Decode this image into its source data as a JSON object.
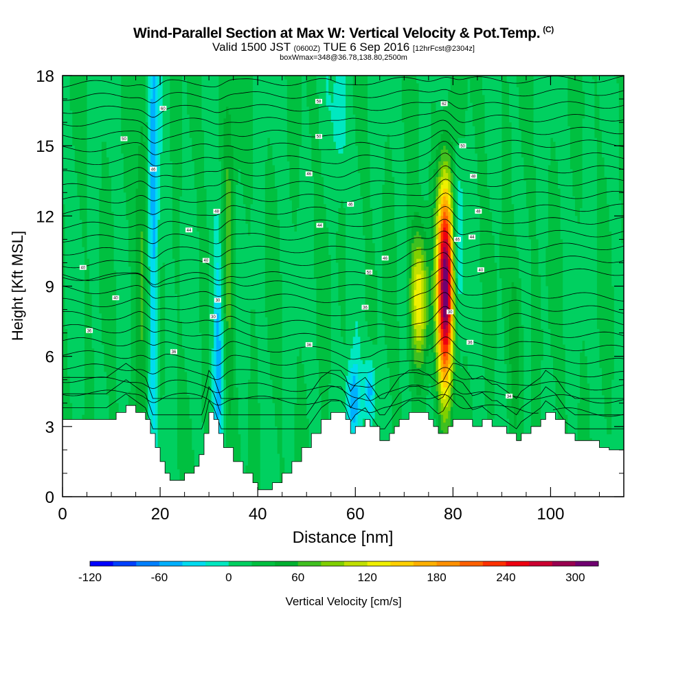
{
  "header": {
    "title": "Wind-Parallel Section at Max W: Vertical Velocity & Pot.Temp.",
    "title_mark": "(C)",
    "valid_prefix": "Valid 1500 JST",
    "valid_utc": "(0600Z)",
    "valid_date": "TUE 6 Sep 2016",
    "forecast": "[12hrFcst@2304z]",
    "box_info": "boxWmax=348@36.78,138.80,2500m"
  },
  "chart_data": {
    "type": "heatmap",
    "xlabel": "Distance [nm]",
    "ylabel": "Height [Kft MSL]",
    "xlim": [
      0,
      115
    ],
    "ylim": [
      0,
      18
    ],
    "x_ticks": [
      0,
      20,
      40,
      60,
      80,
      100
    ],
    "y_ticks": [
      0,
      3,
      6,
      9,
      12,
      15,
      18
    ],
    "colorbar": {
      "label": "Vertical Velocity [cm/s]",
      "tick_labels": [
        -120,
        -60,
        0,
        60,
        120,
        180,
        240,
        300
      ],
      "levels": [
        -120,
        -100,
        -80,
        -60,
        -40,
        -20,
        0,
        20,
        40,
        60,
        80,
        100,
        120,
        140,
        160,
        180,
        200,
        220,
        240,
        260,
        280,
        300,
        320
      ],
      "colors": [
        "#0000ff",
        "#0040ff",
        "#0080ff",
        "#00b0ff",
        "#00dcf0",
        "#00e8c0",
        "#00d060",
        "#00c040",
        "#00b030",
        "#40c020",
        "#80d000",
        "#c0e000",
        "#f0f000",
        "#ffd000",
        "#ffb000",
        "#ff9000",
        "#ff6000",
        "#ff3000",
        "#ee0010",
        "#cc0030",
        "#990050",
        "#700070"
      ]
    },
    "terrain": [
      [
        0,
        3.3
      ],
      [
        3,
        3.3
      ],
      [
        6,
        3.3
      ],
      [
        9,
        3.3
      ],
      [
        11,
        3.6
      ],
      [
        13,
        3.9
      ],
      [
        15,
        3.6
      ],
      [
        17,
        3.3
      ],
      [
        18,
        2.7
      ],
      [
        19,
        2.1
      ],
      [
        20,
        1.5
      ],
      [
        21,
        1.0
      ],
      [
        22,
        0.7
      ],
      [
        24,
        0.7
      ],
      [
        25,
        1.0
      ],
      [
        27,
        1.3
      ],
      [
        28,
        1.8
      ],
      [
        29,
        2.7
      ],
      [
        30,
        3.6
      ],
      [
        31,
        3.3
      ],
      [
        32,
        2.7
      ],
      [
        33,
        2.1
      ],
      [
        35,
        1.5
      ],
      [
        37,
        1.0
      ],
      [
        39,
        0.6
      ],
      [
        40,
        0.3
      ],
      [
        42,
        0.3
      ],
      [
        43,
        0.6
      ],
      [
        45,
        1.0
      ],
      [
        47,
        1.5
      ],
      [
        49,
        2.1
      ],
      [
        51,
        2.7
      ],
      [
        53,
        3.3
      ],
      [
        55,
        3.6
      ],
      [
        57,
        3.6
      ],
      [
        58,
        3.3
      ],
      [
        59,
        2.7
      ],
      [
        60,
        3.0
      ],
      [
        62,
        3.3
      ],
      [
        63,
        3.0
      ],
      [
        65,
        2.4
      ],
      [
        66,
        2.4
      ],
      [
        67,
        2.7
      ],
      [
        68,
        3.0
      ],
      [
        69,
        3.3
      ],
      [
        71,
        3.6
      ],
      [
        73,
        3.6
      ],
      [
        75,
        3.3
      ],
      [
        76,
        3.0
      ],
      [
        77,
        2.7
      ],
      [
        78,
        2.7
      ],
      [
        79,
        3.0
      ],
      [
        80,
        3.3
      ],
      [
        82,
        3.3
      ],
      [
        84,
        3.0
      ],
      [
        86,
        3.3
      ],
      [
        88,
        3.0
      ],
      [
        89,
        3.0
      ],
      [
        91,
        2.7
      ],
      [
        93,
        2.4
      ],
      [
        94,
        2.7
      ],
      [
        96,
        3.0
      ],
      [
        98,
        3.3
      ],
      [
        99,
        3.6
      ],
      [
        101,
        3.3
      ],
      [
        103,
        2.7
      ],
      [
        105,
        2.4
      ],
      [
        108,
        2.4
      ],
      [
        110,
        2.1
      ],
      [
        112,
        2.0
      ],
      [
        115,
        2.0
      ]
    ],
    "updraft_cores": [
      {
        "x": 78.5,
        "y": 9.0,
        "sx": 1.2,
        "sy": 3.2,
        "w": 300
      },
      {
        "x": 73.0,
        "y": 8.5,
        "sx": 1.4,
        "sy": 2.0,
        "w": 120
      },
      {
        "x": 16.5,
        "y": 9.5,
        "sx": 1.2,
        "sy": 5.0,
        "w": 60
      },
      {
        "x": 34.0,
        "y": 11.0,
        "sx": 1.0,
        "sy": 5.0,
        "w": 50
      },
      {
        "x": 93.0,
        "y": 7.0,
        "sx": 1.0,
        "sy": 2.5,
        "w": 40
      }
    ],
    "downdraft_cores": [
      {
        "x": 18.5,
        "y": 12.0,
        "sx": 0.8,
        "sy": 7.0,
        "w": -90
      },
      {
        "x": 32.0,
        "y": 6.5,
        "sx": 0.8,
        "sy": 4.0,
        "w": -70
      },
      {
        "x": 59.5,
        "y": 4.0,
        "sx": 1.0,
        "sy": 1.3,
        "w": -80
      },
      {
        "x": 63.0,
        "y": 4.5,
        "sx": 0.8,
        "sy": 1.0,
        "w": -70
      },
      {
        "x": 81.0,
        "y": 11.0,
        "sx": 0.8,
        "sy": 2.5,
        "w": -60
      },
      {
        "x": 57.0,
        "y": 16.5,
        "sx": 1.0,
        "sy": 2.0,
        "w": -40
      }
    ],
    "contour_labels": [
      {
        "text": "60",
        "x": 20.6,
        "y": 16.6
      },
      {
        "text": "50",
        "x": 12.6,
        "y": 15.3
      },
      {
        "text": "46",
        "x": 18.6,
        "y": 14.0
      },
      {
        "text": "58",
        "x": 52.5,
        "y": 16.9
      },
      {
        "text": "50",
        "x": 52.5,
        "y": 15.4
      },
      {
        "text": "46",
        "x": 50.5,
        "y": 13.8
      },
      {
        "text": "62",
        "x": 78.2,
        "y": 16.8
      },
      {
        "text": "50",
        "x": 82.0,
        "y": 15.0
      },
      {
        "text": "48",
        "x": 84.2,
        "y": 13.7
      },
      {
        "text": "48",
        "x": 31.6,
        "y": 12.2
      },
      {
        "text": "44",
        "x": 25.9,
        "y": 11.4
      },
      {
        "text": "46",
        "x": 59.0,
        "y": 12.5
      },
      {
        "text": "44",
        "x": 52.7,
        "y": 11.6
      },
      {
        "text": "48",
        "x": 85.2,
        "y": 12.2
      },
      {
        "text": "44",
        "x": 83.9,
        "y": 11.1
      },
      {
        "text": "46",
        "x": 80.9,
        "y": 11.0
      },
      {
        "text": "40",
        "x": 4.2,
        "y": 9.8
      },
      {
        "text": "40",
        "x": 29.4,
        "y": 10.1
      },
      {
        "text": "46",
        "x": 66.1,
        "y": 10.2
      },
      {
        "text": "50",
        "x": 62.8,
        "y": 9.6
      },
      {
        "text": "40",
        "x": 85.7,
        "y": 9.7
      },
      {
        "text": "40",
        "x": 10.9,
        "y": 8.5
      },
      {
        "text": "30",
        "x": 31.8,
        "y": 8.4
      },
      {
        "text": "30",
        "x": 30.9,
        "y": 7.7
      },
      {
        "text": "36",
        "x": 5.5,
        "y": 7.1
      },
      {
        "text": "36",
        "x": 62.0,
        "y": 8.1
      },
      {
        "text": "30",
        "x": 79.4,
        "y": 7.9
      },
      {
        "text": "36",
        "x": 22.8,
        "y": 6.2
      },
      {
        "text": "36",
        "x": 50.5,
        "y": 6.5
      },
      {
        "text": "36",
        "x": 83.5,
        "y": 6.6
      },
      {
        "text": "34",
        "x": 91.5,
        "y": 4.3
      }
    ]
  }
}
